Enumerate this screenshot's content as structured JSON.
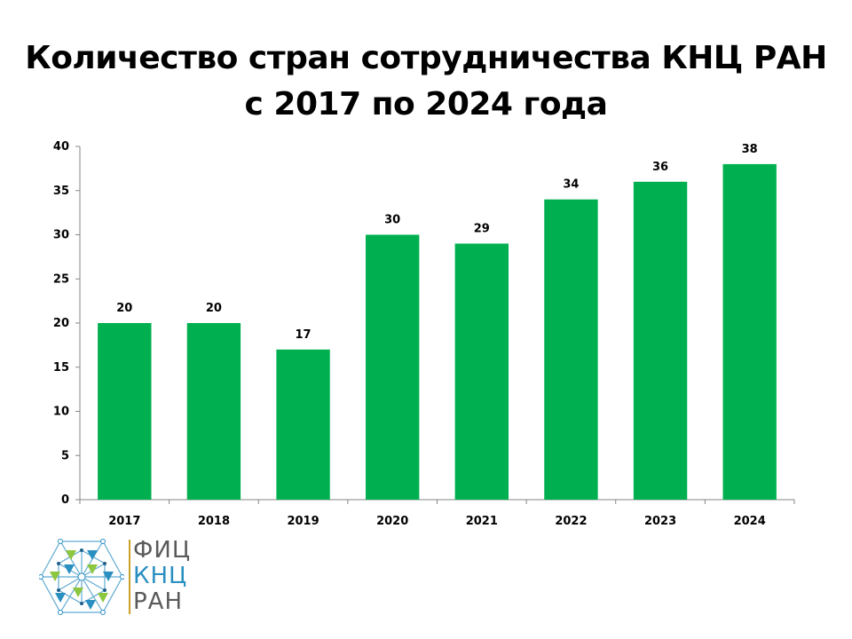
{
  "title": {
    "line1": "Количество стран сотрудничества КНЦ РАН",
    "line2": "с 2017 по 2024 года"
  },
  "chart_data": {
    "type": "bar",
    "categories": [
      "2017",
      "2018",
      "2019",
      "2020",
      "2021",
      "2022",
      "2023",
      "2024"
    ],
    "values": [
      20,
      20,
      17,
      30,
      29,
      34,
      36,
      38
    ],
    "data_labels": [
      "20",
      "20",
      "17",
      "30",
      "29",
      "34",
      "36",
      "38"
    ],
    "ylim": [
      0,
      40
    ],
    "yticks": [
      0,
      5,
      10,
      15,
      20,
      25,
      30,
      35,
      40
    ],
    "xlabel": "",
    "ylabel": "",
    "grid": false,
    "legend": "none",
    "bar_color": "#00b050"
  },
  "logo": {
    "line1": "ФИЦ",
    "line2": "КНЦ",
    "line3": "РАН",
    "colors": {
      "gray": "#5a5a5a",
      "blue": "#2a8fc1",
      "green": "#8dc63f",
      "gold": "#c9a227"
    }
  }
}
